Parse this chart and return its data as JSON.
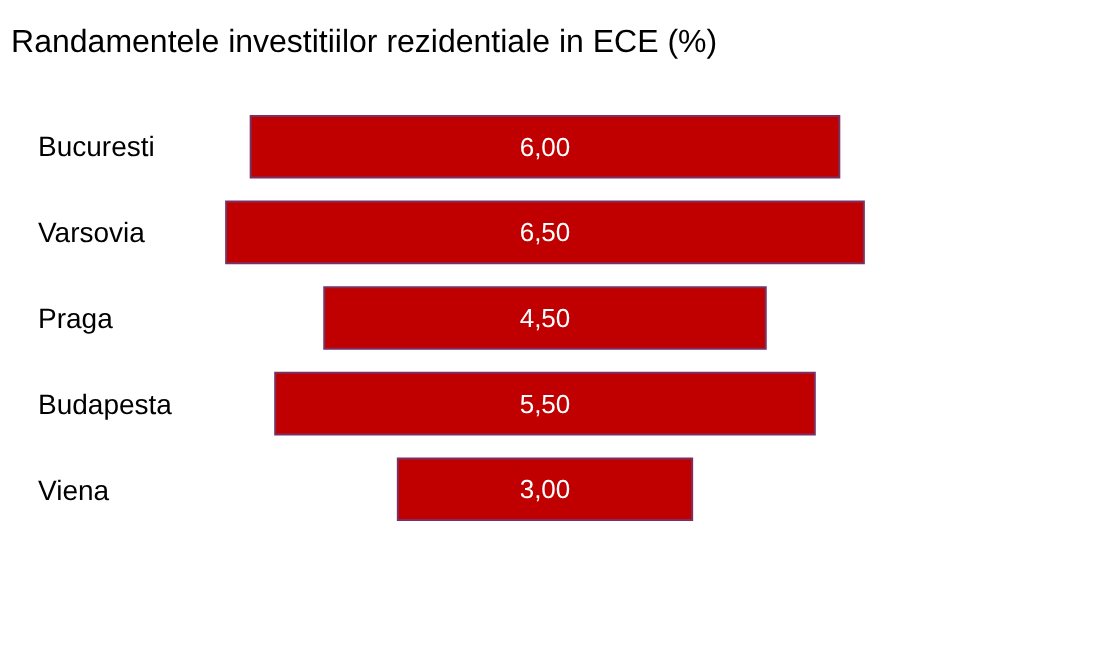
{
  "chart_data": {
    "type": "other",
    "title": "Randamentele investitiilor rezidentiale in ECE (%)",
    "categories": [
      "Bucuresti",
      "Varsovia",
      "Praga",
      "Budapesta",
      "Viena"
    ],
    "values": [
      6.0,
      6.5,
      4.5,
      5.5,
      3.0
    ],
    "value_labels": [
      "6,00",
      "6,50",
      "4,50",
      "5,50",
      "3,00"
    ],
    "color": "#c00000"
  }
}
